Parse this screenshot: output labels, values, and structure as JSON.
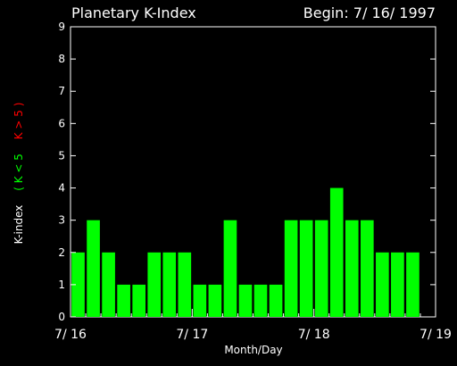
{
  "chart_data": {
    "type": "bar",
    "title": "Planetary K-Index",
    "begin_label": "Begin: 7/ 16/ 1997",
    "xlabel": "Month/Day",
    "ylabel": {
      "prefix": "K-index",
      "green_part": "( K < 5",
      "red_part": "K > 5 )"
    },
    "ylim": [
      0,
      9
    ],
    "yticks": [
      "0",
      "1",
      "2",
      "3",
      "4",
      "5",
      "6",
      "7",
      "8",
      "9"
    ],
    "xticks": [
      "7/ 16",
      "7/ 17",
      "7/ 18",
      "7/ 19"
    ],
    "bins_per_day": 8,
    "values": [
      2,
      3,
      2,
      1,
      1,
      2,
      2,
      2,
      1,
      1,
      3,
      1,
      1,
      1,
      3,
      3,
      3,
      4,
      3,
      3,
      2,
      2,
      2
    ],
    "colors": {
      "background": "#000000",
      "axes": "#ffffff",
      "bar_low": "#00ff00",
      "bar_high": "#ff0000",
      "label_green": "#00ff00",
      "label_red": "#ff0000"
    },
    "grid": false
  }
}
